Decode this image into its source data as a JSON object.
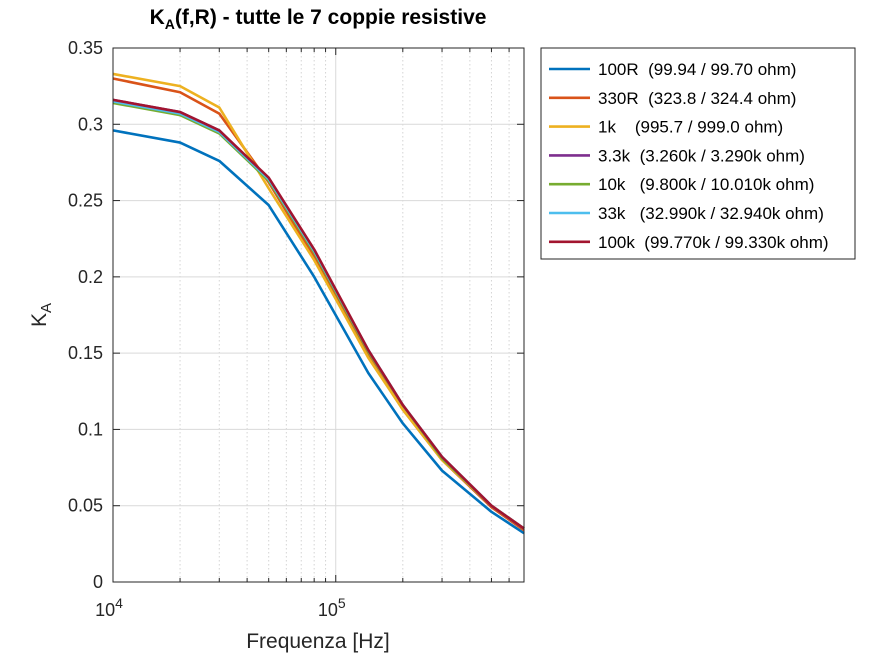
{
  "chart_data": {
    "type": "line",
    "title": "K",
    "title_sub": "A",
    "title_rest": "(f,R) - tutte le 7 coppie resistive",
    "xlabel": "Frequenza [Hz]",
    "ylabel": "K",
    "ylabel_sub": "A",
    "xscale": "log",
    "xlim": [
      10000,
      700000
    ],
    "ylim": [
      0,
      0.35
    ],
    "yticks": [
      "0",
      "0.05",
      "0.1",
      "0.15",
      "0.2",
      "0.25",
      "0.3",
      "0.35"
    ],
    "yticks_values": [
      0,
      0.05,
      0.1,
      0.15,
      0.2,
      0.25,
      0.3,
      0.35
    ],
    "xticks": [
      {
        "value": 10000,
        "base": "10",
        "exp": "4"
      },
      {
        "value": 100000,
        "base": "10",
        "exp": "5"
      }
    ],
    "grid": true,
    "legend_position": "outside-right-top",
    "x": [
      10000,
      20000,
      30000,
      50000,
      80000,
      140000,
      200000,
      300000,
      500000,
      700000
    ],
    "series": [
      {
        "name": "100R  (99.94 / 99.70 ohm)",
        "color": "#0072BD",
        "values": [
          0.296,
          0.288,
          0.276,
          0.247,
          0.2,
          0.137,
          0.104,
          0.073,
          0.046,
          0.032
        ]
      },
      {
        "name": "330R  (323.8 / 324.4 ohm)",
        "color": "#D95319",
        "values": [
          0.33,
          0.321,
          0.307,
          0.262,
          0.213,
          0.148,
          0.113,
          0.08,
          0.049,
          0.034
        ]
      },
      {
        "name": "1k    (995.7 / 999.0 ohm)",
        "color": "#EDB120",
        "values": [
          0.333,
          0.325,
          0.311,
          0.258,
          0.211,
          0.147,
          0.113,
          0.08,
          0.05,
          0.035
        ]
      },
      {
        "name": "3.3k  (3.260k / 3.290k ohm)",
        "color": "#7E2F8E",
        "values": [
          0.316,
          0.308,
          0.296,
          0.264,
          0.217,
          0.152,
          0.116,
          0.082,
          0.05,
          0.035
        ]
      },
      {
        "name": "10k   (9.800k / 10.010k ohm)",
        "color": "#77AC30",
        "values": [
          0.314,
          0.306,
          0.294,
          0.263,
          0.216,
          0.151,
          0.116,
          0.081,
          0.05,
          0.035
        ]
      },
      {
        "name": "33k   (32.990k / 32.940k ohm)",
        "color": "#4DBEEE",
        "values": [
          0.315,
          0.307,
          0.295,
          0.264,
          0.217,
          0.152,
          0.116,
          0.082,
          0.05,
          0.035
        ]
      },
      {
        "name": "100k  (99.770k / 99.330k ohm)",
        "color": "#A2142F",
        "values": [
          0.316,
          0.308,
          0.296,
          0.265,
          0.218,
          0.152,
          0.116,
          0.082,
          0.05,
          0.035
        ]
      }
    ]
  }
}
